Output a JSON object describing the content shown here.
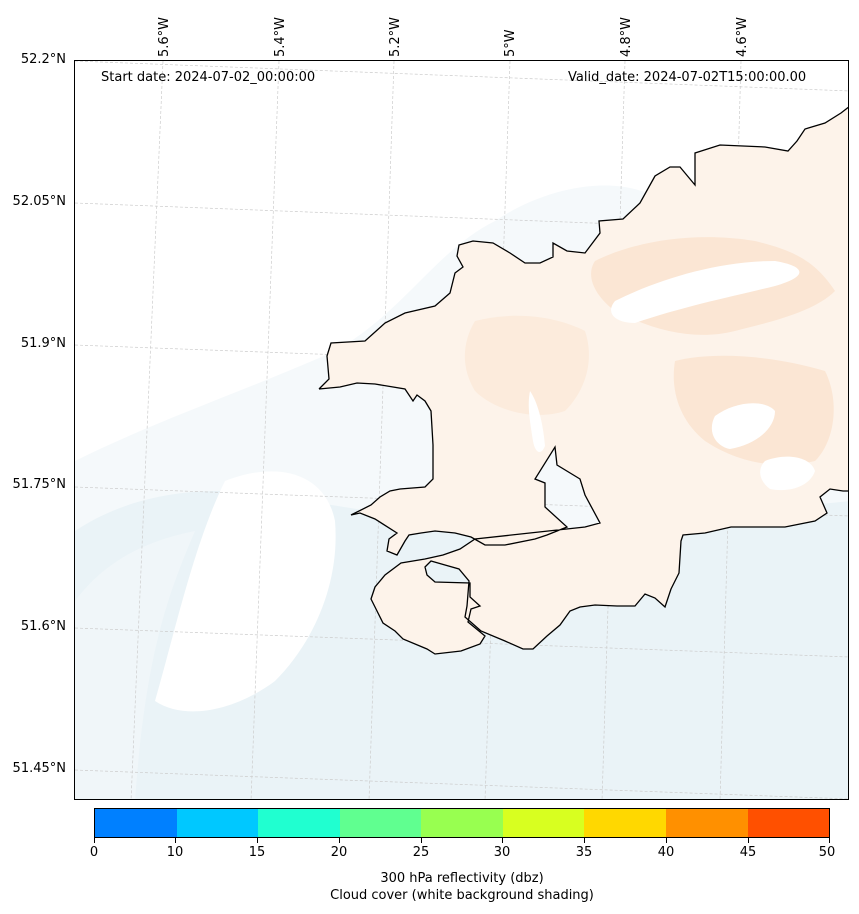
{
  "map": {
    "start_date": "Start date: 2024-07-02_00:00:00",
    "valid_date": "Valid_date: 2024-07-02T15:00:00.00",
    "lon_labels": [
      "5.6°W",
      "5.4°W",
      "5.2°W",
      "5°W",
      "4.8°W",
      "4.6°W"
    ],
    "lat_labels": [
      "52.2°N",
      "52.05°N",
      "51.9°N",
      "51.75°N",
      "51.6°N",
      "51.45°N"
    ],
    "colors": {
      "coastline": "#000000",
      "land_fill": "#fdf3ea",
      "land_fill_dark": "#fbe6d4",
      "sea_shade_light": "#f4f9fb",
      "sea_shade": "#eaf3f7",
      "grid": "#cccccc"
    }
  },
  "colorbar": {
    "ticks": [
      "0",
      "10",
      "15",
      "20",
      "25",
      "30",
      "35",
      "40",
      "45",
      "50"
    ],
    "colors": [
      "#0080ff",
      "#00c8ff",
      "#20ffd0",
      "#60ff90",
      "#98ff50",
      "#d8ff20",
      "#ffd800",
      "#ff9000",
      "#ff5000"
    ],
    "caption_line1": "300 hPa reflectivity (dbz)",
    "caption_line2": "Cloud cover (white background shading)"
  }
}
